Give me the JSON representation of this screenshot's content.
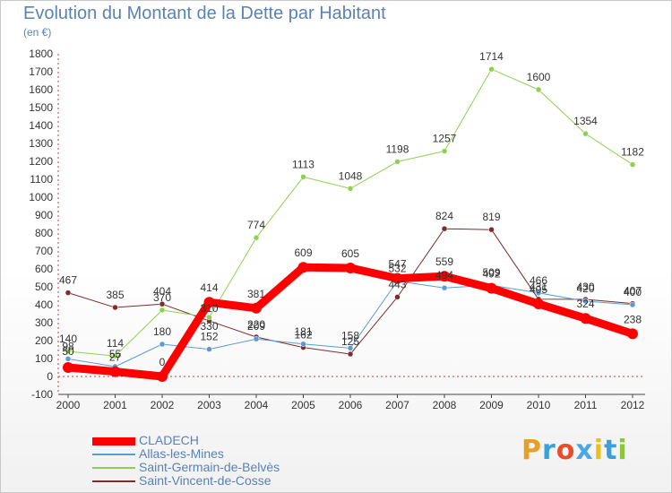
{
  "title": "Evolution du Montant de la Dette par Habitant",
  "unit_label": "(en €)",
  "brand": "Proxiti",
  "chart_data": {
    "type": "line",
    "title": "Evolution du Montant de la Dette par Habitant",
    "ylabel": "(en €)",
    "xlabel": "",
    "x": [
      2000,
      2001,
      2002,
      2003,
      2004,
      2005,
      2006,
      2007,
      2008,
      2009,
      2010,
      2011,
      2012
    ],
    "ylim": [
      -100,
      1800
    ],
    "yticks": [
      -100,
      0,
      100,
      200,
      300,
      400,
      500,
      600,
      700,
      800,
      900,
      1000,
      1100,
      1200,
      1300,
      1400,
      1500,
      1600,
      1700,
      1800
    ],
    "grid": false,
    "legend_position": "bottom-left",
    "series": [
      {
        "name": "CLADECH",
        "color": "#ff0000",
        "width": 9,
        "values": [
          50,
          27,
          0,
          414,
          381,
          609,
          605,
          547,
          559,
          492,
          405,
          324,
          238
        ]
      },
      {
        "name": "Allas-les-Mines",
        "color": "#5b9bd5",
        "width": 1,
        "values": [
          98,
          55,
          180,
          152,
          209,
          181,
          158,
          532,
          494,
          509,
          466,
          420,
          400
        ]
      },
      {
        "name": "Saint-Germain-de-Belvès",
        "color": "#8fd14f",
        "width": 1,
        "values": [
          140,
          114,
          370,
          330,
          774,
          1113,
          1048,
          1198,
          1257,
          1714,
          1600,
          1354,
          1182
        ]
      },
      {
        "name": "Saint-Vincent-de-Cosse",
        "color": "#7b2d2d",
        "width": 1,
        "values": [
          467,
          385,
          404,
          310,
          220,
          162,
          125,
          443,
          824,
          819,
          431,
          430,
          407
        ]
      }
    ]
  }
}
